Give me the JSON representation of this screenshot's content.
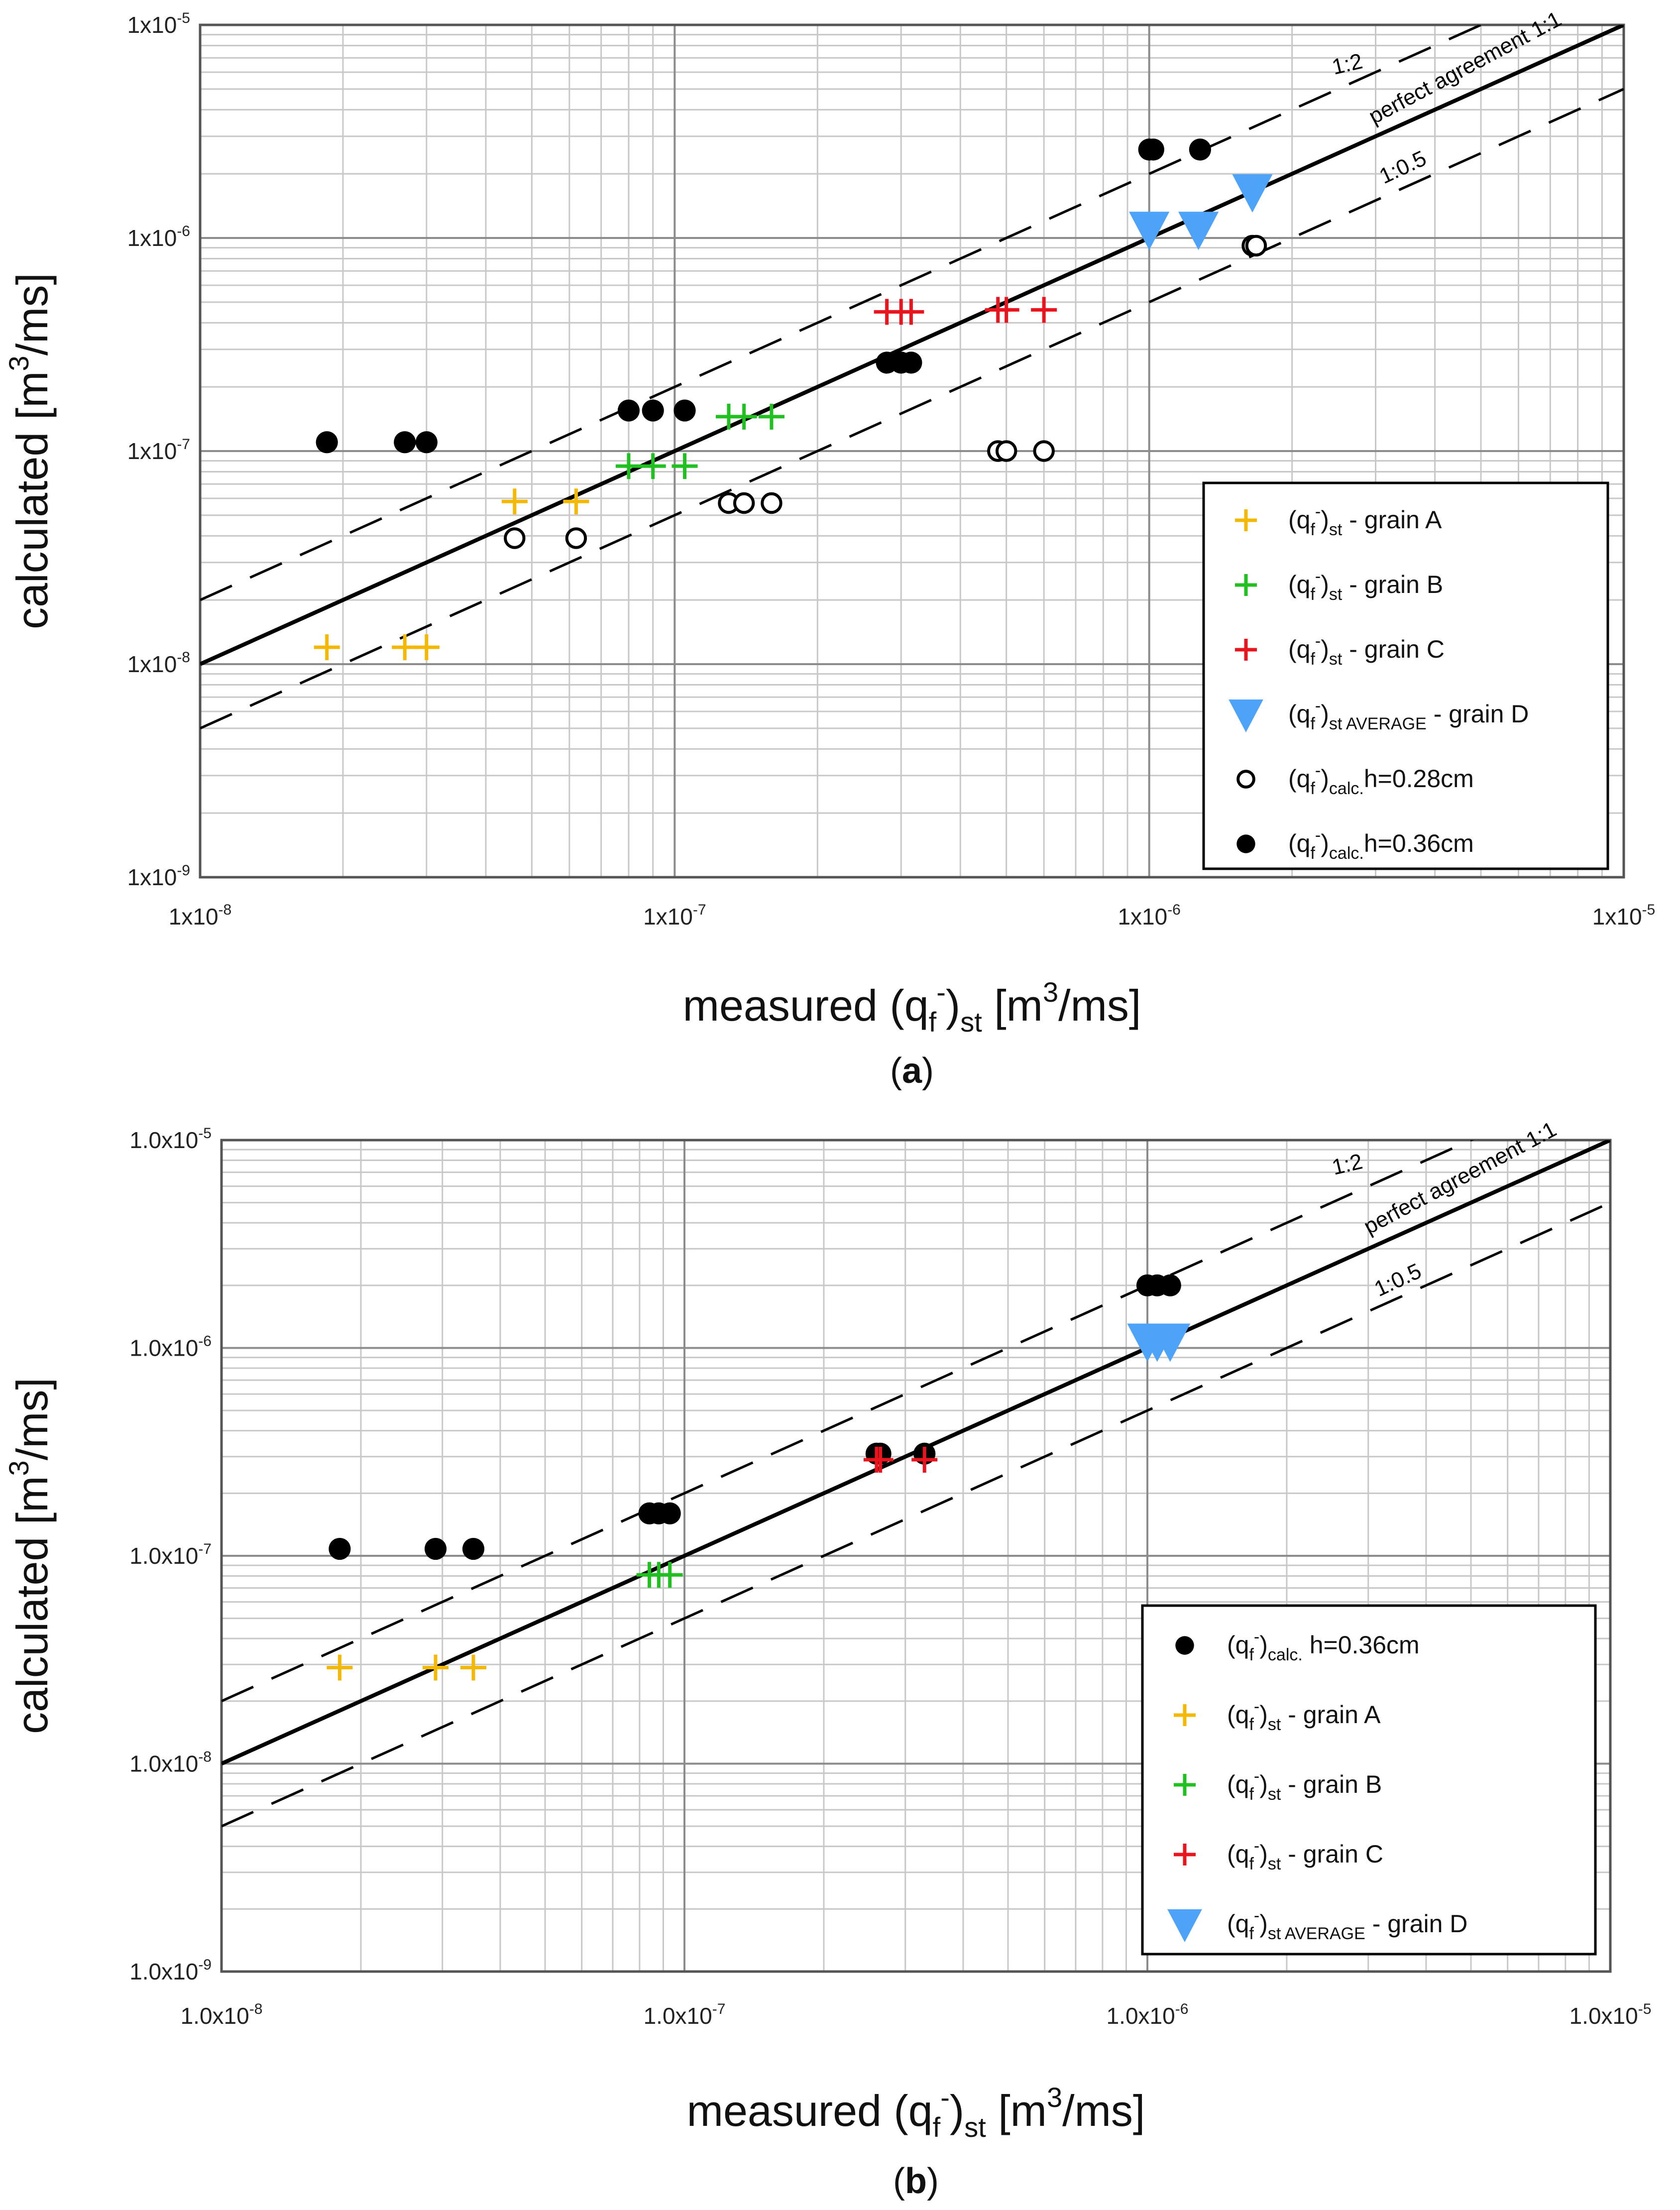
{
  "colors": {
    "grain_A": "#f5b800",
    "grain_B": "#1fc01f",
    "grain_C": "#e8141e",
    "grain_D": "#4da3f7",
    "calc": "#000000",
    "grid_major": "#8c8c8c",
    "grid_minor": "#c8c8c8"
  },
  "chart_data": [
    {
      "type": "scatter",
      "panel_label": "a",
      "xlabel": "measured (qf-)st [m3/ms]",
      "ylabel": "calculated [m3/ms]",
      "x_scale": "log",
      "y_scale": "log",
      "xlim": [
        1e-08,
        1e-05
      ],
      "ylim": [
        1e-09,
        1e-05
      ],
      "x_ticks": [
        "1x10-8",
        "1x10-7",
        "1x10-6",
        "1x10-5"
      ],
      "y_ticks": [
        "1x10-9",
        "1x10-8",
        "1x10-7",
        "1x10-6",
        "1x10-5"
      ],
      "grid": true,
      "legend_position": "bottom-right",
      "reference_lines": [
        {
          "label": "1:2",
          "factor": 2,
          "style": "dashed"
        },
        {
          "label": "perfect agreement 1:1",
          "factor": 1,
          "style": "solid"
        },
        {
          "label": "1:0.5",
          "factor": 0.5,
          "style": "dashed"
        }
      ],
      "series": [
        {
          "name": "(qf-)st - grain A",
          "marker": "plus",
          "color": "grain_A",
          "x": [
            1.85e-08,
            2.7e-08,
            3e-08,
            4.6e-08,
            6.2e-08
          ],
          "y": [
            1.2e-08,
            1.2e-08,
            1.2e-08,
            5.8e-08,
            5.8e-08
          ]
        },
        {
          "name": "(qf-)st - grain B",
          "marker": "plus",
          "color": "grain_B",
          "x": [
            8e-08,
            9e-08,
            1.05e-07,
            1.3e-07,
            1.4e-07,
            1.6e-07
          ],
          "y": [
            8.5e-08,
            8.5e-08,
            8.5e-08,
            1.45e-07,
            1.45e-07,
            1.45e-07
          ]
        },
        {
          "name": "(qf-)st - grain C",
          "marker": "plus",
          "color": "grain_C",
          "x": [
            2.8e-07,
            3e-07,
            3.15e-07,
            4.8e-07,
            5e-07,
            6e-07
          ],
          "y": [
            4.5e-07,
            4.5e-07,
            4.5e-07,
            4.6e-07,
            4.6e-07,
            4.6e-07
          ]
        },
        {
          "name": "(qf-)st AVERAGE - grain D",
          "marker": "triangle-down",
          "color": "grain_D",
          "x": [
            1e-06,
            1.27e-06,
            1.65e-06
          ],
          "y": [
            1.1e-06,
            1.1e-06,
            1.65e-06
          ]
        },
        {
          "name": "(qf-)calc.h=0.28cm",
          "marker": "circle-open",
          "color": "calc",
          "x": [
            4.6e-08,
            6.2e-08,
            1.3e-07,
            1.4e-07,
            1.6e-07,
            4.8e-07,
            5e-07,
            6e-07,
            1.65e-06,
            1.68e-06
          ],
          "y": [
            3.9e-08,
            3.9e-08,
            5.7e-08,
            5.7e-08,
            5.7e-08,
            1e-07,
            1e-07,
            1e-07,
            9.2e-07,
            9.2e-07
          ]
        },
        {
          "name": "(qf-)calc.h=0.36cm",
          "marker": "circle-filled",
          "color": "calc",
          "x": [
            1.85e-08,
            2.7e-08,
            3e-08,
            8e-08,
            9e-08,
            1.05e-07,
            2.8e-07,
            3e-07,
            3.15e-07,
            1e-06,
            1.02e-06,
            1.28e-06
          ],
          "y": [
            1.1e-07,
            1.1e-07,
            1.1e-07,
            1.55e-07,
            1.55e-07,
            1.55e-07,
            2.6e-07,
            2.6e-07,
            2.6e-07,
            2.6e-06,
            2.6e-06,
            2.6e-06
          ]
        }
      ]
    },
    {
      "type": "scatter",
      "panel_label": "b",
      "xlabel": "measured (qf-)st [m3/ms]",
      "ylabel": "calculated [m3/ms]",
      "x_scale": "log",
      "y_scale": "log",
      "xlim": [
        1e-08,
        1e-05
      ],
      "ylim": [
        1e-09,
        1e-05
      ],
      "x_ticks": [
        "1.0x10-8",
        "1.0x10-7",
        "1.0x10-6",
        "1.0x10-5"
      ],
      "y_ticks": [
        "1.0x10-9",
        "1.0x10-8",
        "1.0x10-7",
        "1.0x10-6",
        "1.0x10-5"
      ],
      "grid": true,
      "legend_position": "bottom-right",
      "reference_lines": [
        {
          "label": "1:2",
          "factor": 2,
          "style": "dashed"
        },
        {
          "label": "perfect agreement 1:1",
          "factor": 1,
          "style": "solid"
        },
        {
          "label": "1:0.5",
          "factor": 0.5,
          "style": "dashed"
        }
      ],
      "series": [
        {
          "name": "(qf-)calc. h=0.36cm",
          "marker": "circle-filled",
          "color": "calc",
          "x": [
            1.8e-08,
            2.9e-08,
            3.5e-08,
            8.4e-08,
            8.8e-08,
            9.3e-08,
            2.6e-07,
            2.65e-07,
            3.3e-07,
            1e-06,
            1.05e-06,
            1.12e-06
          ],
          "y": [
            1.08e-07,
            1.08e-07,
            1.08e-07,
            1.6e-07,
            1.6e-07,
            1.6e-07,
            3.1e-07,
            3.1e-07,
            3.1e-07,
            2e-06,
            2e-06,
            2e-06
          ]
        },
        {
          "name": "(qf-)st - grain A",
          "marker": "plus",
          "color": "grain_A",
          "x": [
            1.8e-08,
            2.9e-08,
            3.5e-08
          ],
          "y": [
            2.9e-08,
            2.9e-08,
            2.9e-08
          ]
        },
        {
          "name": "(qf-)st - grain B",
          "marker": "plus",
          "color": "grain_B",
          "x": [
            8.4e-08,
            8.8e-08,
            9.3e-08
          ],
          "y": [
            8.1e-08,
            8.1e-08,
            8.1e-08
          ]
        },
        {
          "name": "(qf-)st - grain C",
          "marker": "plus",
          "color": "grain_C",
          "x": [
            2.6e-07,
            2.65e-07,
            3.3e-07
          ],
          "y": [
            2.9e-07,
            2.9e-07,
            2.9e-07
          ]
        },
        {
          "name": "(qf-)st AVERAGE - grain D",
          "marker": "triangle-down",
          "color": "grain_D",
          "x": [
            1e-06,
            1.05e-06,
            1.12e-06
          ],
          "y": [
            1.08e-06,
            1.08e-06,
            1.08e-06
          ]
        }
      ]
    }
  ],
  "panels": [
    {
      "caption": "a",
      "xlabel": {
        "pre": "measured (q",
        "sub": "f",
        "sup": "-",
        "mid": ")",
        "sub2": "st",
        "post": " [m",
        "sup2": "3",
        "post2": "/ms]"
      },
      "ylabel": {
        "pre": "calculated [m",
        "sup": "3",
        "post": "/ms]"
      },
      "ref_labels": {
        "line_2": "1:2",
        "line_1": "perfect agreement 1:1",
        "line_05": "1:0.5"
      },
      "x_ticks": [
        {
          "base": "1x10",
          "exp": "-8"
        },
        {
          "base": "1x10",
          "exp": "-7"
        },
        {
          "base": "1x10",
          "exp": "-6"
        },
        {
          "base": "1x10",
          "exp": "-5"
        }
      ],
      "y_ticks": [
        {
          "base": "1x10",
          "exp": "-9"
        },
        {
          "base": "1x10",
          "exp": "-8"
        },
        {
          "base": "1x10",
          "exp": "-7"
        },
        {
          "base": "1x10",
          "exp": "-6"
        },
        {
          "base": "1x10",
          "exp": "-5"
        }
      ],
      "legend": [
        {
          "marker": "plus",
          "color": "grain_A",
          "pre": "(q",
          "sub": "f",
          "sup": "-",
          "mid": ")",
          "sub2": "st",
          "post": " - grain A"
        },
        {
          "marker": "plus",
          "color": "grain_B",
          "pre": "(q",
          "sub": "f",
          "sup": "-",
          "mid": ")",
          "sub2": "st",
          "post": " - grain B"
        },
        {
          "marker": "plus",
          "color": "grain_C",
          "pre": "(q",
          "sub": "f",
          "sup": "-",
          "mid": ")",
          "sub2": "st",
          "post": " - grain C"
        },
        {
          "marker": "triangle-down",
          "color": "grain_D",
          "pre": "(q",
          "sub": "f",
          "sup": "-",
          "mid": ")",
          "sub2": "st AVERAGE",
          "post": " - grain D"
        },
        {
          "marker": "circle-open",
          "color": "calc",
          "pre": "(q",
          "sub": "f",
          "sup": "-",
          "mid": ")",
          "sub2": "calc.",
          "post": "h=0.28cm"
        },
        {
          "marker": "circle-filled",
          "color": "calc",
          "pre": "(q",
          "sub": "f",
          "sup": "-",
          "mid": ")",
          "sub2": "calc.",
          "post": "h=0.36cm"
        }
      ]
    },
    {
      "caption": "b",
      "xlabel": {
        "pre": "measured (q",
        "sub": "f",
        "sup": "-",
        "mid": ")",
        "sub2": "st",
        "post": " [m",
        "sup2": "3",
        "post2": "/ms]"
      },
      "ylabel": {
        "pre": "calculated [m",
        "sup": "3",
        "post": "/ms]"
      },
      "ref_labels": {
        "line_2": "1:2",
        "line_1": "perfect agreement 1:1",
        "line_05": "1:0.5"
      },
      "x_ticks": [
        {
          "base": "1.0x10",
          "exp": "-8"
        },
        {
          "base": "1.0x10",
          "exp": "-7"
        },
        {
          "base": "1.0x10",
          "exp": "-6"
        },
        {
          "base": "1.0x10",
          "exp": "-5"
        }
      ],
      "y_ticks": [
        {
          "base": "1.0x10",
          "exp": "-9"
        },
        {
          "base": "1.0x10",
          "exp": "-8"
        },
        {
          "base": "1.0x10",
          "exp": "-7"
        },
        {
          "base": "1.0x10",
          "exp": "-6"
        },
        {
          "base": "1.0x10",
          "exp": "-5"
        }
      ],
      "legend": [
        {
          "marker": "circle-filled",
          "color": "calc",
          "pre": "(q",
          "sub": "f",
          "sup": "-",
          "mid": ")",
          "sub2": "calc.",
          "post": " h=0.36cm"
        },
        {
          "marker": "plus",
          "color": "grain_A",
          "pre": "(q",
          "sub": "f",
          "sup": "-",
          "mid": ")",
          "sub2": "st",
          "post": " - grain A"
        },
        {
          "marker": "plus",
          "color": "grain_B",
          "pre": "(q",
          "sub": "f",
          "sup": "-",
          "mid": ")",
          "sub2": "st",
          "post": " - grain B"
        },
        {
          "marker": "plus",
          "color": "grain_C",
          "pre": "(q",
          "sub": "f",
          "sup": "-",
          "mid": ")",
          "sub2": "st",
          "post": " - grain C"
        },
        {
          "marker": "triangle-down",
          "color": "grain_D",
          "pre": "(q",
          "sub": "f",
          "sup": "-",
          "mid": ")",
          "sub2": "st AVERAGE",
          "post": " - grain D"
        }
      ]
    }
  ]
}
